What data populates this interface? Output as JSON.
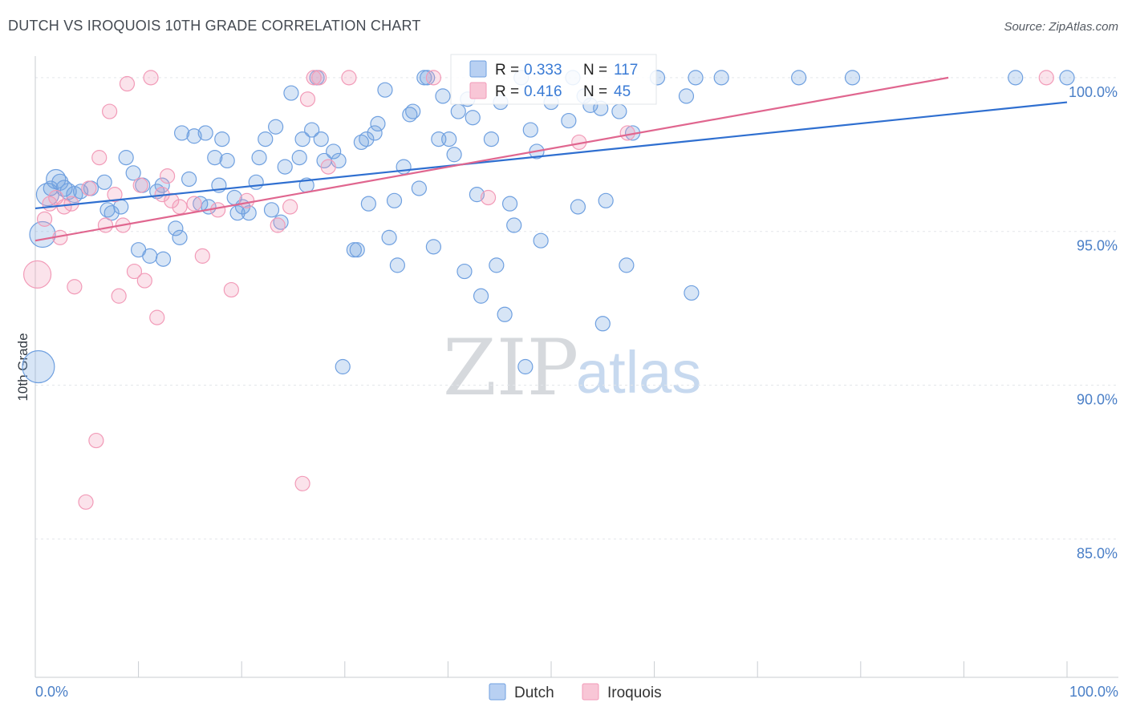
{
  "title": "DUTCH VS IROQUOIS 10TH GRADE CORRELATION CHART",
  "source": "Source: ZipAtlas.com",
  "watermark": {
    "part1": "ZIP",
    "part2": "atlas"
  },
  "legend": {
    "rows": [
      {
        "r_label": "R =",
        "r_value": "0.333",
        "n_label": "N =",
        "n_value": "117"
      },
      {
        "r_label": "R =",
        "r_value": "0.416",
        "n_label": "N =",
        "n_value": "45"
      }
    ]
  },
  "bottom_legend": [
    "Dutch",
    "Iroquois"
  ],
  "chart_data": {
    "type": "scatter",
    "title": "DUTCH VS IROQUOIS 10TH GRADE CORRELATION CHART",
    "xlabel": "",
    "ylabel": "10th Grade",
    "xlim": [
      0,
      100
    ],
    "ylim": [
      80.5,
      100.7
    ],
    "x_tick_labels": [
      "0.0%",
      "100.0%"
    ],
    "y_ticks": [
      85,
      90,
      95,
      100
    ],
    "y_tick_labels": [
      "85.0%",
      "90.0%",
      "95.0%",
      "100.0%"
    ],
    "colors": {
      "dutch": "#6fa0e0",
      "dutch_line": "#2f6fd0",
      "iroquois": "#f29bb8",
      "iroquois_line": "#e0668f",
      "grid": "#e3e6ea",
      "tick_label": "#4a7fc7"
    },
    "series": [
      {
        "name": "Dutch",
        "trend": {
          "x": [
            0,
            100
          ],
          "y": [
            95.75,
            99.2
          ]
        },
        "points": [
          [
            0.3,
            90.6,
            20
          ],
          [
            0.7,
            94.9,
            16
          ],
          [
            1.2,
            96.2,
            14
          ],
          [
            2,
            96.7,
            12
          ],
          [
            2.4,
            96.6,
            10
          ],
          [
            2.8,
            96.4,
            10
          ],
          [
            3.2,
            96.3,
            10
          ],
          [
            3.8,
            96.2,
            10
          ],
          [
            4.4,
            96.3,
            9
          ],
          [
            5.4,
            96.4,
            9
          ],
          [
            6.7,
            96.6,
            9
          ],
          [
            7.4,
            95.6,
            9
          ],
          [
            8.3,
            95.8,
            9
          ],
          [
            7,
            95.7,
            9
          ],
          [
            8.8,
            97.4,
            9
          ],
          [
            9.5,
            96.9,
            9
          ],
          [
            10,
            94.4,
            9
          ],
          [
            10.4,
            96.5,
            9
          ],
          [
            11.1,
            94.2,
            9
          ],
          [
            11.8,
            96.3,
            9
          ],
          [
            12.3,
            96.5,
            9
          ],
          [
            12.4,
            94.1,
            9
          ],
          [
            13.6,
            95.1,
            9
          ],
          [
            14,
            94.8,
            9
          ],
          [
            14.2,
            98.2,
            9
          ],
          [
            14.9,
            96.7,
            9
          ],
          [
            15.4,
            98.1,
            9
          ],
          [
            16,
            95.9,
            9
          ],
          [
            16.5,
            98.2,
            9
          ],
          [
            16.8,
            95.8,
            9
          ],
          [
            17.4,
            97.4,
            9
          ],
          [
            17.8,
            96.5,
            9
          ],
          [
            18.1,
            98.0,
            9
          ],
          [
            18.6,
            97.3,
            9
          ],
          [
            19.3,
            96.1,
            9
          ],
          [
            19.6,
            95.6,
            9
          ],
          [
            20.1,
            95.8,
            9
          ],
          [
            20.7,
            95.6,
            9
          ],
          [
            21.4,
            96.6,
            9
          ],
          [
            21.7,
            97.4,
            9
          ],
          [
            22.3,
            98.0,
            9
          ],
          [
            22.9,
            95.7,
            9
          ],
          [
            23.3,
            98.4,
            9
          ],
          [
            23.8,
            95.3,
            9
          ],
          [
            24.2,
            97.1,
            9
          ],
          [
            24.8,
            99.5,
            9
          ],
          [
            25.6,
            97.4,
            9
          ],
          [
            25.9,
            98.0,
            9
          ],
          [
            26.3,
            96.5,
            9
          ],
          [
            26.8,
            98.3,
            9
          ],
          [
            27.3,
            100.0,
            9
          ],
          [
            27.7,
            98.0,
            9
          ],
          [
            28.0,
            97.3,
            9
          ],
          [
            28.9,
            97.6,
            9
          ],
          [
            29.4,
            97.3,
            9
          ],
          [
            29.8,
            90.6,
            9
          ],
          [
            30.9,
            94.4,
            9
          ],
          [
            31.2,
            94.4,
            9
          ],
          [
            31.6,
            97.9,
            9
          ],
          [
            32.1,
            98.0,
            9
          ],
          [
            32.3,
            95.9,
            9
          ],
          [
            32.9,
            98.2,
            9
          ],
          [
            33.2,
            98.5,
            9
          ],
          [
            33.9,
            99.6,
            9
          ],
          [
            34.3,
            94.8,
            9
          ],
          [
            34.8,
            96.0,
            9
          ],
          [
            35.1,
            93.9,
            9
          ],
          [
            35.7,
            97.1,
            9
          ],
          [
            36.3,
            98.8,
            9
          ],
          [
            36.6,
            98.9,
            9
          ],
          [
            37.2,
            96.4,
            9
          ],
          [
            37.7,
            100.0,
            9
          ],
          [
            38.0,
            100.0,
            9
          ],
          [
            38.6,
            94.5,
            9
          ],
          [
            39.1,
            98.0,
            9
          ],
          [
            39.5,
            99.4,
            9
          ],
          [
            40.1,
            98.0,
            9
          ],
          [
            40.6,
            97.5,
            9
          ],
          [
            41.0,
            98.9,
            9
          ],
          [
            41.6,
            93.7,
            9
          ],
          [
            41.9,
            99.3,
            9
          ],
          [
            42.4,
            98.7,
            9
          ],
          [
            42.8,
            96.2,
            9
          ],
          [
            43.2,
            92.9,
            9
          ],
          [
            44.2,
            98.0,
            9
          ],
          [
            44.7,
            93.9,
            9
          ],
          [
            45.1,
            99.2,
            9
          ],
          [
            45.5,
            92.3,
            9
          ],
          [
            46.0,
            95.9,
            9
          ],
          [
            46.4,
            95.2,
            9
          ],
          [
            47.1,
            100.0,
            9
          ],
          [
            47.5,
            90.6,
            9
          ],
          [
            48.0,
            98.3,
            9
          ],
          [
            48.6,
            97.6,
            9
          ],
          [
            49.0,
            94.7,
            9
          ],
          [
            50.0,
            99.2,
            9
          ],
          [
            51.7,
            98.6,
            9
          ],
          [
            52.1,
            100.0,
            9
          ],
          [
            52.6,
            95.8,
            9
          ],
          [
            53.2,
            99.4,
            9
          ],
          [
            53.8,
            99.1,
            9
          ],
          [
            55.0,
            92.0,
            9
          ],
          [
            55.3,
            96.0,
            9
          ],
          [
            56.6,
            98.9,
            9
          ],
          [
            57.3,
            93.9,
            9
          ],
          [
            57.9,
            98.2,
            9
          ],
          [
            60.3,
            100.0,
            9
          ],
          [
            63.1,
            99.4,
            9
          ],
          [
            63.6,
            93.0,
            9
          ],
          [
            64.0,
            100.0,
            9
          ],
          [
            66.5,
            100.0,
            9
          ],
          [
            74.0,
            100.0,
            9
          ],
          [
            79.2,
            100.0,
            9
          ],
          [
            95.0,
            100.0,
            9
          ],
          [
            100.0,
            100.0,
            9
          ],
          [
            54.8,
            99.0,
            9
          ],
          [
            1.5,
            96.4,
            9
          ]
        ]
      },
      {
        "name": "Iroquois",
        "trend": {
          "x": [
            0,
            88.5
          ],
          "y": [
            94.7,
            100.0
          ]
        },
        "points": [
          [
            0.2,
            93.6,
            17
          ],
          [
            0.9,
            95.4,
            9
          ],
          [
            1.4,
            95.9,
            9
          ],
          [
            2,
            96.1,
            9
          ],
          [
            2.4,
            94.8,
            9
          ],
          [
            2.8,
            95.8,
            9
          ],
          [
            3.5,
            95.9,
            9
          ],
          [
            3.8,
            93.2,
            9
          ],
          [
            4.9,
            86.2,
            9
          ],
          [
            5.2,
            96.4,
            9
          ],
          [
            5.9,
            88.2,
            9
          ],
          [
            6.2,
            97.4,
            9
          ],
          [
            6.8,
            95.2,
            9
          ],
          [
            7.2,
            98.9,
            9
          ],
          [
            7.7,
            96.2,
            9
          ],
          [
            8.1,
            92.9,
            9
          ],
          [
            8.5,
            95.2,
            9
          ],
          [
            8.9,
            99.8,
            9
          ],
          [
            9.6,
            93.7,
            9
          ],
          [
            10.2,
            96.5,
            9
          ],
          [
            10.6,
            93.4,
            9
          ],
          [
            11.2,
            100.0,
            9
          ],
          [
            11.8,
            92.2,
            9
          ],
          [
            12.3,
            96.2,
            9
          ],
          [
            12.8,
            96.8,
            9
          ],
          [
            13.2,
            96.0,
            9
          ],
          [
            14.0,
            95.8,
            9
          ],
          [
            15.4,
            95.9,
            9
          ],
          [
            16.2,
            94.2,
            9
          ],
          [
            17.7,
            95.7,
            9
          ],
          [
            19.0,
            93.1,
            9
          ],
          [
            20.5,
            96.0,
            9
          ],
          [
            23.5,
            95.2,
            9
          ],
          [
            24.7,
            95.8,
            9
          ],
          [
            25.9,
            86.8,
            9
          ],
          [
            26.4,
            99.3,
            9
          ],
          [
            27.0,
            100.0,
            9
          ],
          [
            27.5,
            100.0,
            9
          ],
          [
            28.4,
            97.1,
            9
          ],
          [
            30.4,
            100.0,
            9
          ],
          [
            38.6,
            100.0,
            9
          ],
          [
            43.9,
            96.1,
            9
          ],
          [
            52.7,
            97.9,
            9
          ],
          [
            57.4,
            98.2,
            9
          ],
          [
            98.0,
            100.0,
            9
          ]
        ]
      }
    ]
  }
}
